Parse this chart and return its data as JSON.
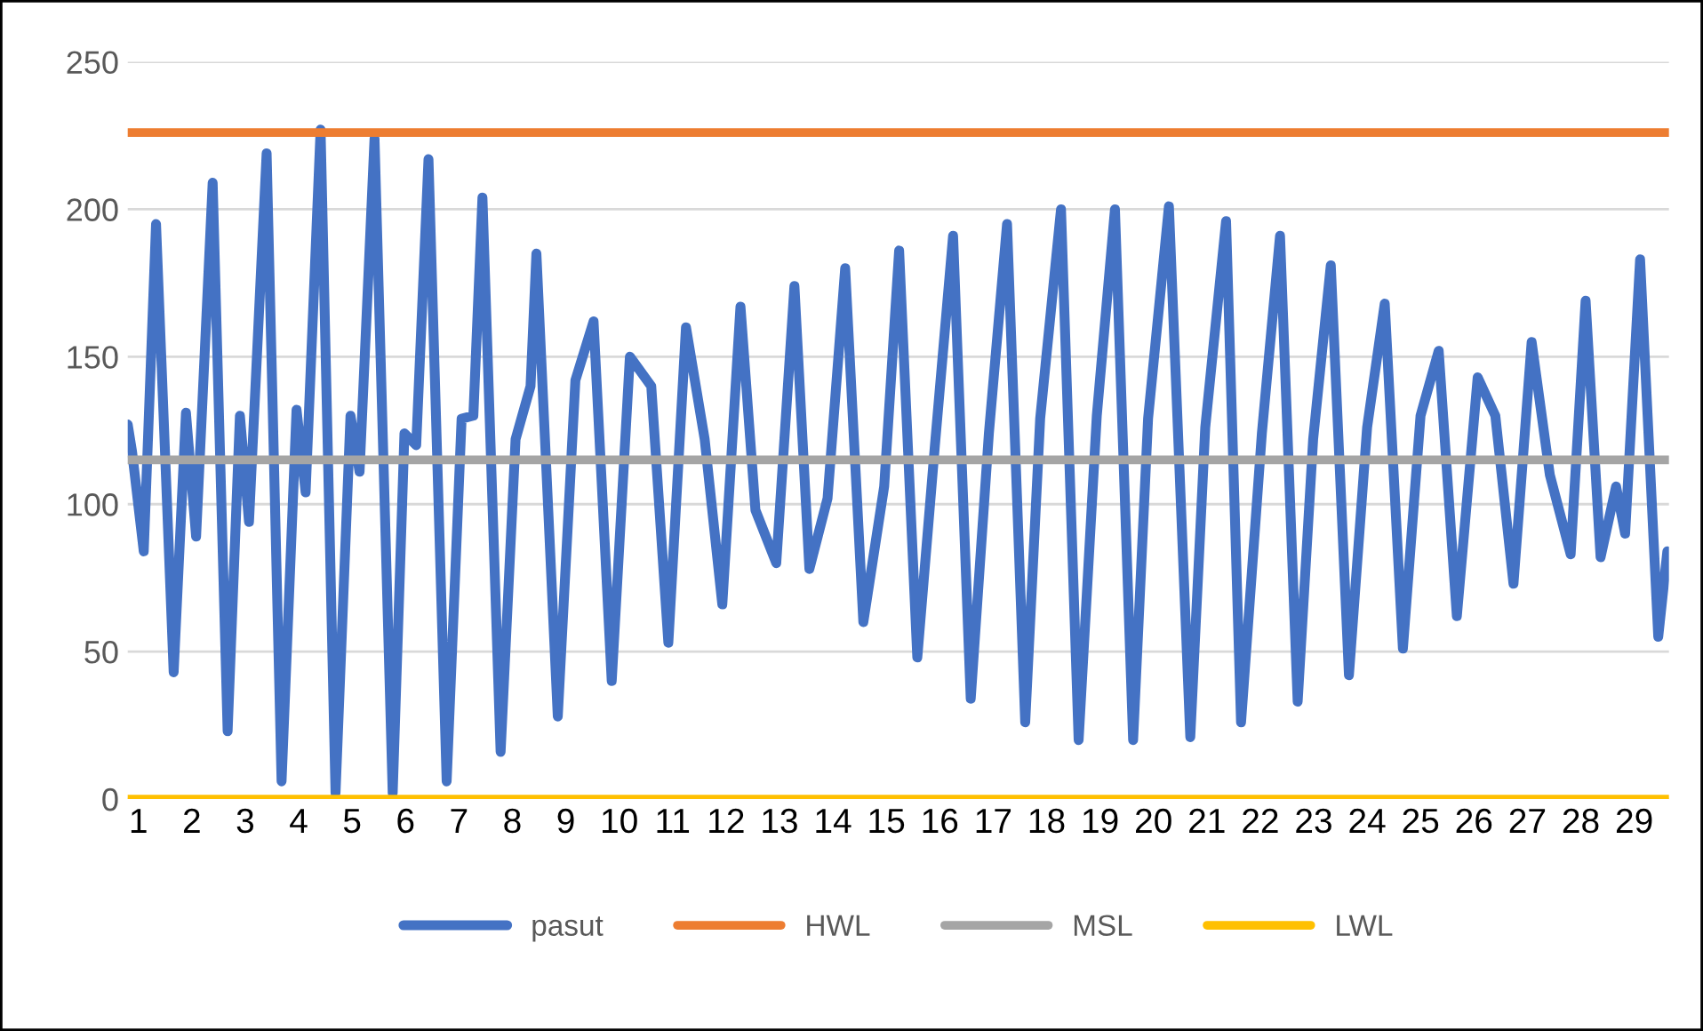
{
  "chart_data": {
    "type": "line",
    "ylim": [
      0,
      250
    ],
    "yticks": [
      0,
      50,
      100,
      150,
      200,
      250
    ],
    "xlim": [
      0.8,
      29.65
    ],
    "xticks": [
      1,
      2,
      3,
      4,
      5,
      6,
      7,
      8,
      9,
      10,
      11,
      12,
      13,
      14,
      15,
      16,
      17,
      18,
      19,
      20,
      21,
      22,
      23,
      24,
      25,
      26,
      27,
      28,
      29
    ],
    "grid": "y",
    "legend": "bottom",
    "line_style": "solid",
    "marker": "none",
    "series": [
      {
        "name": "pasut",
        "color": "#4472c4",
        "x": [
          0.8,
          0.88,
          1.1,
          1.33,
          1.66,
          1.89,
          2.08,
          2.39,
          2.67,
          2.9,
          3.07,
          3.4,
          3.68,
          3.96,
          4.13,
          4.41,
          4.69,
          4.97,
          5.14,
          5.42,
          5.76,
          5.98,
          6.2,
          6.43,
          6.77,
          7.05,
          7.27,
          7.44,
          7.78,
          8.06,
          8.34,
          8.45,
          8.85,
          9.18,
          9.52,
          9.86,
          10.2,
          10.6,
          10.92,
          11.25,
          11.6,
          11.93,
          12.27,
          12.55,
          12.94,
          13.28,
          13.56,
          13.9,
          14.23,
          14.57,
          14.96,
          15.24,
          15.58,
          15.91,
          16.25,
          16.58,
          16.92,
          17.26,
          17.6,
          17.88,
          18.27,
          18.6,
          18.94,
          19.28,
          19.62,
          19.9,
          20.29,
          20.69,
          20.97,
          21.36,
          21.64,
          22.03,
          22.37,
          22.7,
          22.99,
          23.32,
          23.66,
          24.0,
          24.33,
          24.67,
          25.0,
          25.34,
          25.68,
          26.07,
          26.4,
          26.74,
          27.08,
          27.42,
          27.81,
          28.09,
          28.37,
          28.66,
          28.83,
          29.11,
          29.45,
          29.62
        ],
        "values": [
          127,
          118,
          84,
          195,
          43,
          131,
          89,
          209,
          23,
          130,
          94,
          219,
          6,
          132,
          104,
          227,
          2,
          130,
          111,
          224,
          2,
          124,
          120,
          217,
          6,
          129,
          130,
          204,
          16,
          122,
          140,
          185,
          28,
          142,
          162,
          40,
          150,
          140,
          53,
          160,
          122,
          66,
          167,
          98,
          80,
          174,
          78,
          102,
          180,
          60,
          106,
          186,
          48,
          120,
          191,
          34,
          124,
          195,
          26,
          129,
          200,
          20,
          130,
          200,
          20,
          129,
          201,
          21,
          126,
          196,
          26,
          124,
          191,
          33,
          122,
          181,
          42,
          126,
          168,
          51,
          130,
          152,
          62,
          143,
          130,
          73,
          155,
          110,
          83,
          169,
          82,
          106,
          90,
          183,
          55,
          84
        ]
      },
      {
        "name": "HWL",
        "color": "#ed7d31",
        "x": [
          0.8,
          29.65
        ],
        "values": [
          226,
          226
        ]
      },
      {
        "name": "MSL",
        "color": "#a5a5a5",
        "x": [
          0.8,
          29.65
        ],
        "values": [
          115,
          115
        ]
      },
      {
        "name": "LWL",
        "color": "#ffc000",
        "x": [
          0.8,
          29.65
        ],
        "values": [
          0,
          0
        ]
      }
    ]
  }
}
